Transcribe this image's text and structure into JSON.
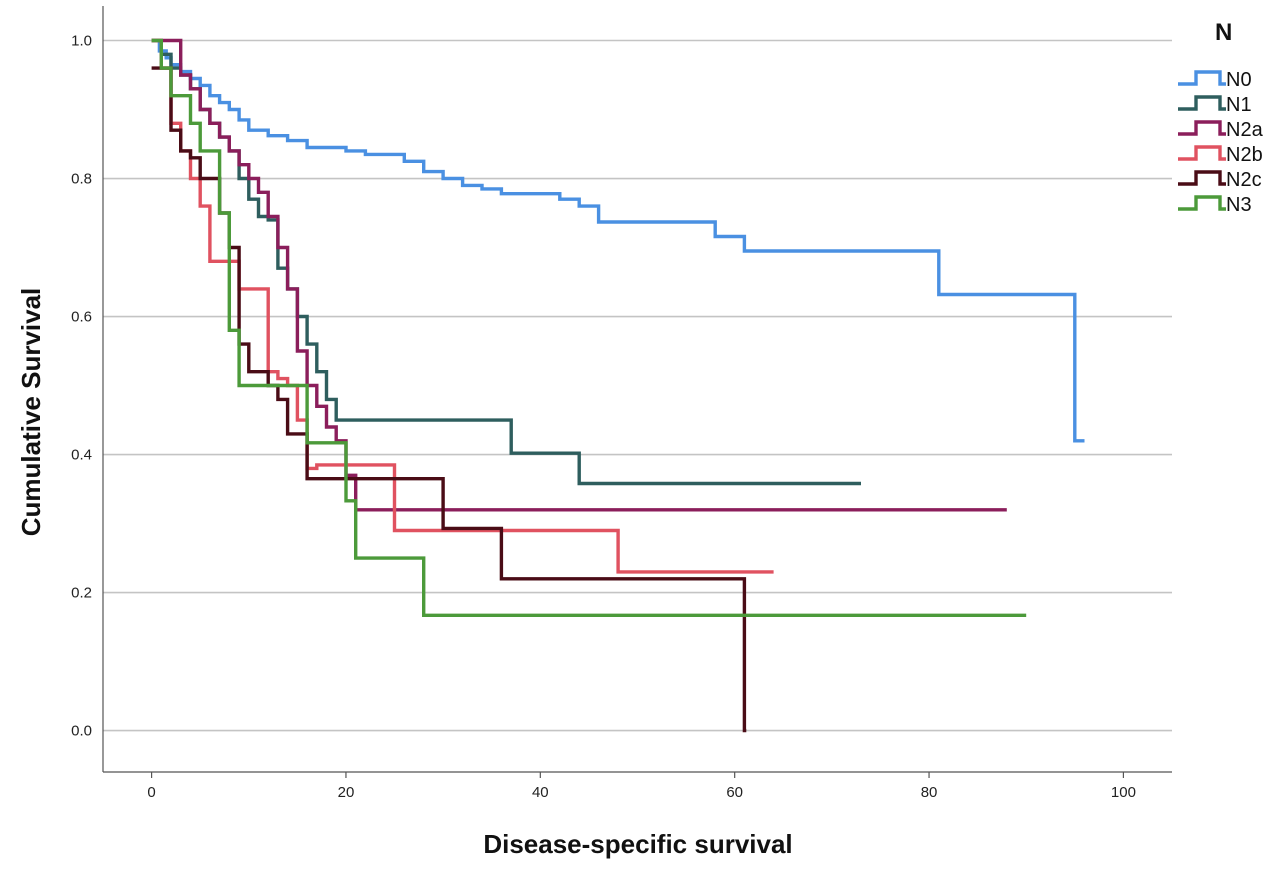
{
  "chart_data": {
    "type": "line",
    "title": "",
    "xlabel": "Disease-specific survival",
    "ylabel": "Cumulative Survival",
    "xlim": [
      -5,
      105
    ],
    "ylim": [
      -0.06,
      1.05
    ],
    "xticks": [
      0,
      20,
      40,
      60,
      80,
      100
    ],
    "xtick_labels": [
      "0",
      "20",
      "40",
      "60",
      "80",
      "100"
    ],
    "yticks": [
      0.0,
      0.2,
      0.4,
      0.6,
      0.8,
      1.0
    ],
    "ytick_labels": [
      "0.0",
      "0.2",
      "0.4",
      "0.6",
      "0.8",
      "1.0"
    ],
    "grid": "horizontal",
    "legend_title": "N",
    "legend_position": "top-right outside",
    "series": [
      {
        "name": "N0",
        "color": "#4a90e2",
        "x": [
          0,
          0.8,
          1.5,
          2,
          3,
          4,
          5,
          6,
          7,
          8,
          9,
          10,
          12,
          14,
          16,
          20,
          22,
          26,
          28,
          30,
          32,
          34,
          36,
          38,
          42,
          44,
          46,
          52,
          58,
          60,
          61,
          74,
          81,
          90,
          94,
          95,
          96
        ],
        "y": [
          1.0,
          0.985,
          0.975,
          0.965,
          0.955,
          0.945,
          0.935,
          0.92,
          0.91,
          0.9,
          0.885,
          0.87,
          0.862,
          0.855,
          0.845,
          0.84,
          0.835,
          0.825,
          0.81,
          0.8,
          0.79,
          0.785,
          0.778,
          0.778,
          0.77,
          0.76,
          0.737,
          0.737,
          0.716,
          0.716,
          0.695,
          0.695,
          0.632,
          0.632,
          0.632,
          0.42,
          0.42
        ]
      },
      {
        "name": "N1",
        "color": "#2e5e5e",
        "x": [
          0,
          1,
          2,
          3,
          4,
          5,
          6,
          7,
          8,
          9,
          10,
          11,
          12,
          13,
          14,
          15,
          16,
          17,
          18,
          19,
          20,
          25,
          30,
          37,
          40,
          44,
          50,
          60,
          70,
          73
        ],
        "y": [
          1.0,
          0.98,
          0.96,
          0.95,
          0.93,
          0.9,
          0.88,
          0.86,
          0.84,
          0.8,
          0.77,
          0.745,
          0.74,
          0.67,
          0.64,
          0.6,
          0.56,
          0.52,
          0.48,
          0.45,
          0.45,
          0.45,
          0.45,
          0.402,
          0.402,
          0.358,
          0.358,
          0.358,
          0.358,
          0.358
        ]
      },
      {
        "name": "N2a",
        "color": "#8b1e5b",
        "x": [
          0,
          2,
          3,
          4,
          5,
          6,
          7,
          8,
          9,
          10,
          11,
          12,
          13,
          14,
          15,
          16,
          17,
          18,
          19,
          20,
          21,
          30,
          40,
          60,
          80,
          88
        ],
        "y": [
          1.0,
          1.0,
          0.95,
          0.93,
          0.9,
          0.88,
          0.86,
          0.84,
          0.82,
          0.8,
          0.78,
          0.745,
          0.7,
          0.64,
          0.55,
          0.5,
          0.47,
          0.44,
          0.42,
          0.37,
          0.32,
          0.32,
          0.32,
          0.32,
          0.32,
          0.32
        ]
      },
      {
        "name": "N2b",
        "color": "#e05260",
        "x": [
          0,
          1,
          2,
          3,
          4,
          5,
          6,
          7,
          8,
          9,
          10,
          12,
          13,
          14,
          15,
          16,
          17,
          20,
          25,
          30,
          40,
          48,
          55,
          64
        ],
        "y": [
          1.0,
          0.96,
          0.88,
          0.84,
          0.8,
          0.76,
          0.68,
          0.68,
          0.68,
          0.64,
          0.64,
          0.52,
          0.51,
          0.5,
          0.45,
          0.38,
          0.385,
          0.385,
          0.29,
          0.29,
          0.29,
          0.23,
          0.23,
          0.23
        ]
      },
      {
        "name": "N2c",
        "color": "#4a0c16",
        "x": [
          0,
          1,
          2,
          3,
          4,
          5,
          6,
          7,
          8,
          9,
          10,
          11,
          12,
          13,
          14,
          15,
          16,
          17,
          18,
          20,
          25,
          30,
          36,
          40,
          50,
          60,
          61,
          61.2
        ],
        "y": [
          0.96,
          0.96,
          0.87,
          0.84,
          0.83,
          0.8,
          0.8,
          0.75,
          0.7,
          0.56,
          0.52,
          0.52,
          0.5,
          0.48,
          0.43,
          0.43,
          0.365,
          0.365,
          0.365,
          0.365,
          0.365,
          0.293,
          0.22,
          0.22,
          0.22,
          0.22,
          0.0,
          0.0
        ]
      },
      {
        "name": "N3",
        "color": "#4c9a3a",
        "x": [
          0,
          1,
          2,
          3,
          4,
          5,
          6,
          7,
          8,
          9,
          10,
          15,
          16,
          19,
          20,
          21,
          24,
          28,
          35,
          50,
          70,
          90
        ],
        "y": [
          1.0,
          0.96,
          0.92,
          0.92,
          0.88,
          0.84,
          0.84,
          0.75,
          0.58,
          0.5,
          0.5,
          0.5,
          0.417,
          0.417,
          0.333,
          0.25,
          0.25,
          0.167,
          0.167,
          0.167,
          0.167,
          0.167
        ]
      }
    ]
  }
}
